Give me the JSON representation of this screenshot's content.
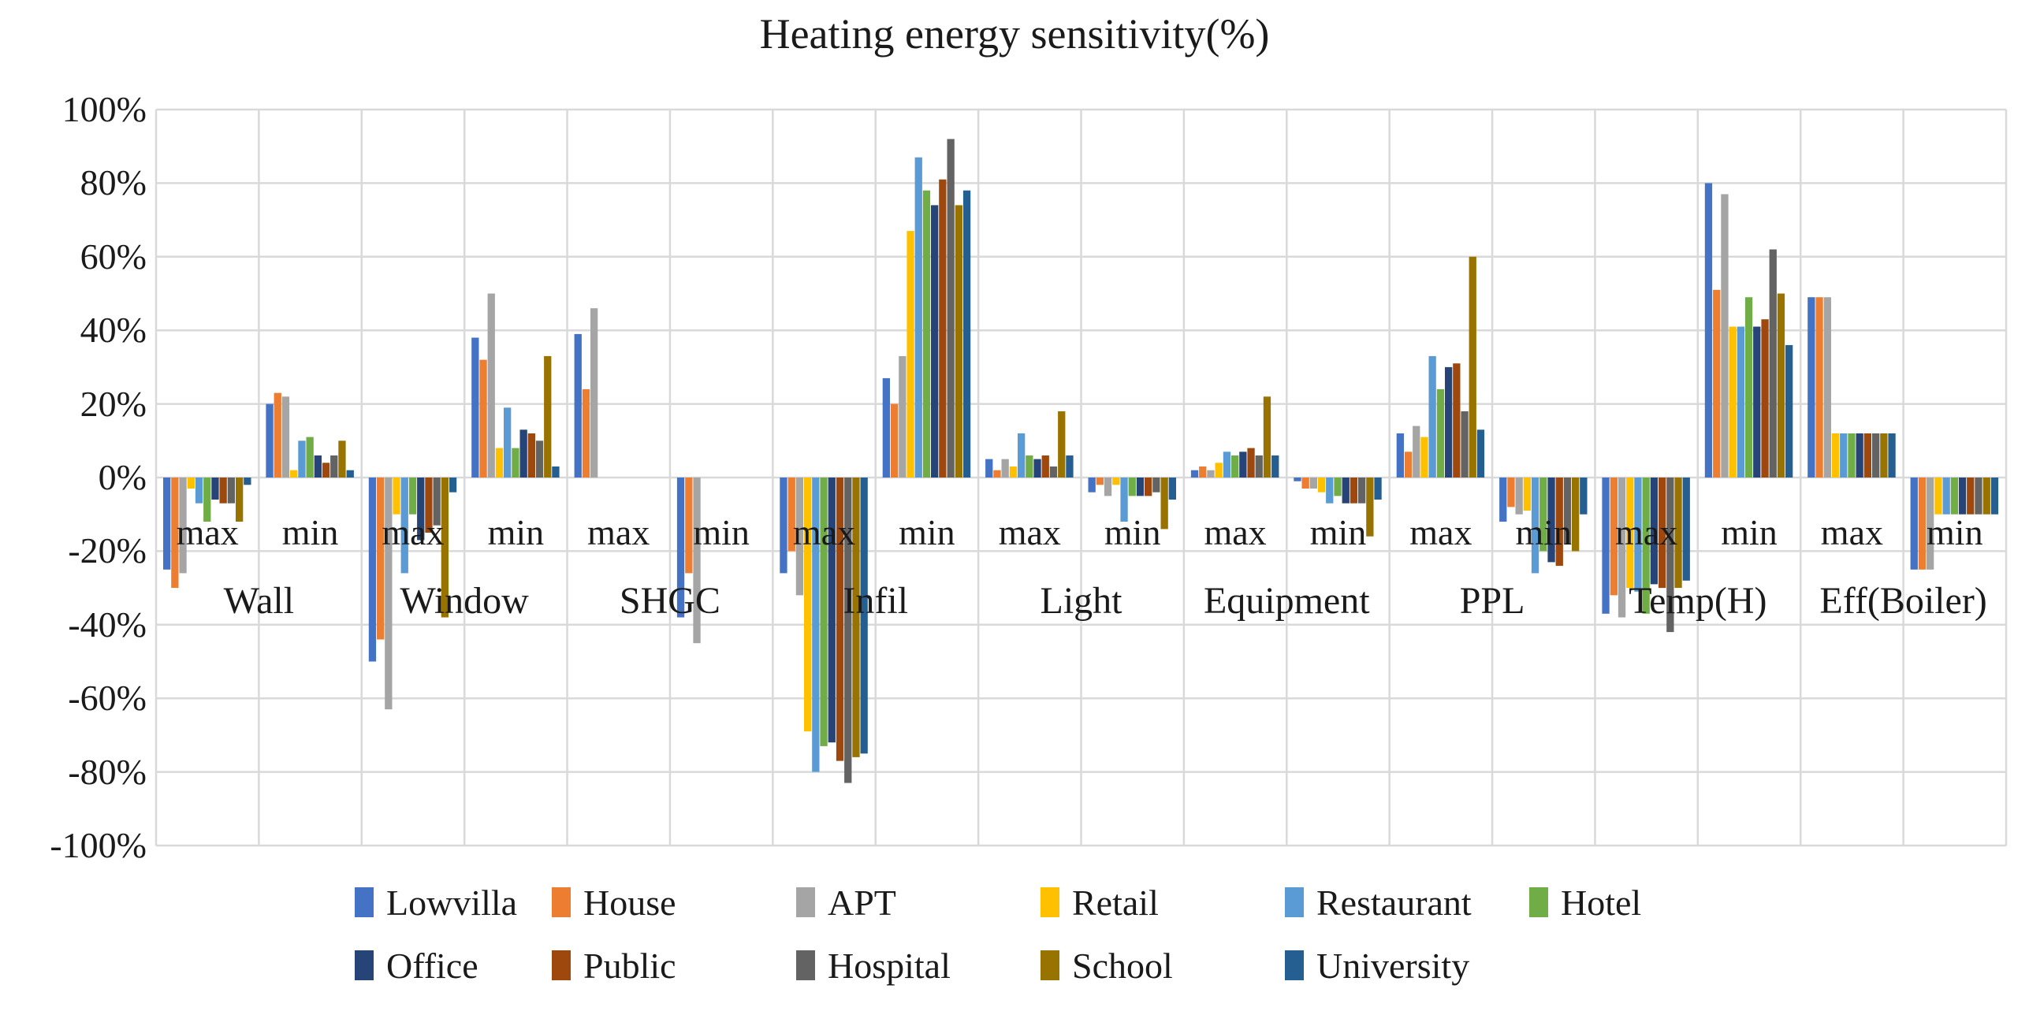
{
  "chart_data": {
    "type": "bar",
    "title": "Heating energy sensitivity(%)",
    "y_axis": {
      "min": -100,
      "max": 100,
      "step": 20,
      "unit": "%",
      "ticks": [
        "100%",
        "80%",
        "60%",
        "40%",
        "20%",
        "0%",
        "-20%",
        "-40%",
        "-60%",
        "-80%",
        "-100%"
      ]
    },
    "grid": true,
    "legend_position": "bottom",
    "groups": [
      "Wall",
      "Window",
      "SHGC",
      "Infil",
      "Light",
      "Equipment",
      "PPL",
      "Temp(H)",
      "Eff(Boiler)"
    ],
    "sub_categories": [
      "max",
      "min"
    ],
    "category_order": [
      "Wall max",
      "Wall min",
      "Window max",
      "Window min",
      "SHGC max",
      "SHGC min",
      "Infil max",
      "Infil min",
      "Light max",
      "Light min",
      "Equipment max",
      "Equipment min",
      "PPL max",
      "PPL min",
      "Temp(H) max",
      "Temp(H) min",
      "Eff(Boiler) max",
      "Eff(Boiler) min"
    ],
    "legend_rows": [
      [
        "Lowvilla",
        "House",
        "APT",
        "Retail",
        "Restaurant",
        "Hotel"
      ],
      [
        "Office",
        "Public",
        "Hospital",
        "School",
        "University"
      ]
    ],
    "series": [
      {
        "name": "Lowvilla",
        "color": "#4472C4",
        "values": [
          -25,
          20,
          -50,
          38,
          39,
          -38,
          -26,
          27,
          5,
          -4,
          2,
          -1,
          12,
          -12,
          -37,
          80,
          49,
          -25
        ]
      },
      {
        "name": "House",
        "color": "#ED7D31",
        "values": [
          -30,
          23,
          -44,
          32,
          24,
          -26,
          -20,
          20,
          2,
          -2,
          3,
          -3,
          7,
          -8,
          -32,
          51,
          49,
          -25
        ]
      },
      {
        "name": "APT",
        "color": "#A5A5A5",
        "values": [
          -26,
          22,
          -63,
          50,
          46,
          -45,
          -32,
          33,
          5,
          -5,
          2,
          -3,
          14,
          -10,
          -38,
          77,
          49,
          -25
        ]
      },
      {
        "name": "Retail",
        "color": "#FFC000",
        "values": [
          -3,
          2,
          -10,
          8,
          0,
          0,
          -69,
          67,
          3,
          -2,
          4,
          -4,
          11,
          -9,
          -30,
          41,
          12,
          -10
        ]
      },
      {
        "name": "Restaurant",
        "color": "#5B9BD5",
        "values": [
          -7,
          10,
          -26,
          19,
          0,
          0,
          -80,
          87,
          12,
          -12,
          7,
          -7,
          33,
          -26,
          -31,
          41,
          12,
          -10
        ]
      },
      {
        "name": "Hotel",
        "color": "#70AD47",
        "values": [
          -12,
          11,
          -10,
          8,
          0,
          0,
          -73,
          78,
          6,
          -5,
          6,
          -5,
          24,
          -20,
          -37,
          49,
          12,
          -10
        ]
      },
      {
        "name": "Office",
        "color": "#264478",
        "values": [
          -6,
          6,
          -17,
          13,
          0,
          0,
          -72,
          74,
          5,
          -5,
          7,
          -7,
          30,
          -23,
          -29,
          41,
          12,
          -10
        ]
      },
      {
        "name": "Public",
        "color": "#9E480E",
        "values": [
          -7,
          4,
          -15,
          12,
          0,
          0,
          -77,
          81,
          6,
          -5,
          8,
          -7,
          31,
          -24,
          -30,
          43,
          12,
          -10
        ]
      },
      {
        "name": "Hospital",
        "color": "#636363",
        "values": [
          -7,
          6,
          -13,
          10,
          0,
          0,
          -83,
          92,
          3,
          -4,
          6,
          -7,
          18,
          -18,
          -42,
          62,
          12,
          -10
        ]
      },
      {
        "name": "School",
        "color": "#997300",
        "values": [
          -12,
          10,
          -38,
          33,
          0,
          0,
          -76,
          74,
          18,
          -14,
          22,
          -16,
          60,
          -20,
          -30,
          50,
          12,
          -10
        ]
      },
      {
        "name": "University",
        "color": "#255E91",
        "values": [
          -2,
          2,
          -4,
          3,
          0,
          0,
          -75,
          78,
          6,
          -6,
          6,
          -6,
          13,
          -10,
          -28,
          36,
          12,
          -10
        ]
      }
    ],
    "colors": {
      "gridline": "#D9D9D9",
      "text": "#1a1a1a",
      "background": "#FFFFFF"
    }
  }
}
